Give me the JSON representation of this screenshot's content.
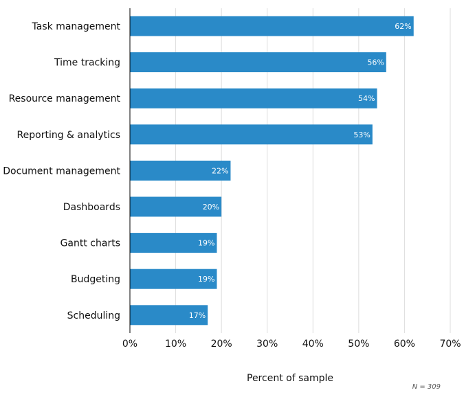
{
  "chart_data": {
    "type": "bar",
    "orientation": "horizontal",
    "categories": [
      "Task management",
      "Time tracking",
      "Resource management",
      "Reporting & analytics",
      "Document management",
      "Dashboards",
      "Gantt charts",
      "Budgeting",
      "Scheduling"
    ],
    "values": [
      62,
      56,
      54,
      53,
      22,
      20,
      19,
      19,
      17
    ],
    "value_labels": [
      "62%",
      "56%",
      "54%",
      "53%",
      "22%",
      "20%",
      "19%",
      "19%",
      "17%"
    ],
    "xlabel": "Percent of sample",
    "ylabel": "",
    "xlim": [
      0,
      70
    ],
    "ticks": [
      0,
      10,
      20,
      30,
      40,
      50,
      60,
      70
    ],
    "tick_labels": [
      "0%",
      "10%",
      "20%",
      "30%",
      "40%",
      "50%",
      "60%",
      "70%"
    ],
    "grid": true,
    "note": "N = 309",
    "colors": {
      "bar": "#2a8ac8",
      "grid": "#dddddd",
      "axis": "#000000"
    }
  }
}
